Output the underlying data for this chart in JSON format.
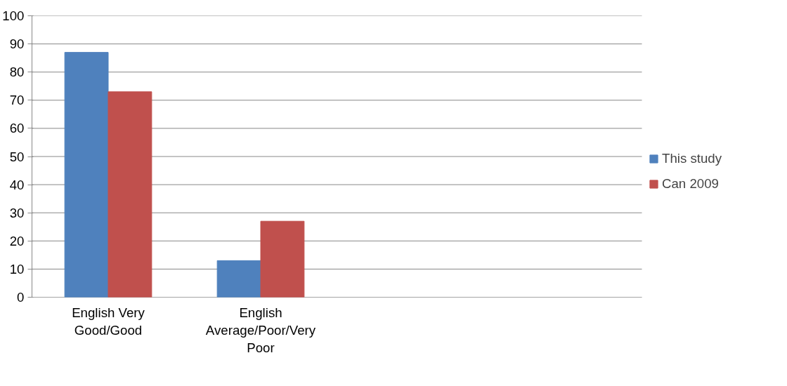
{
  "chart_data": {
    "type": "bar",
    "categories": [
      "English Very Good/Good",
      "English Average/Poor/Very Poor",
      null,
      null
    ],
    "series": [
      {
        "name": "This study",
        "color": "#4f81bd",
        "values": [
          87,
          13,
          null,
          null
        ]
      },
      {
        "name": "Can 2009",
        "color": "#c0504d",
        "values": [
          73,
          27,
          null,
          null
        ]
      }
    ],
    "ylim": [
      0,
      100
    ],
    "yticks": [
      0,
      10,
      20,
      30,
      40,
      50,
      60,
      70,
      80,
      90,
      100
    ],
    "grid": "y",
    "legend": "right"
  }
}
